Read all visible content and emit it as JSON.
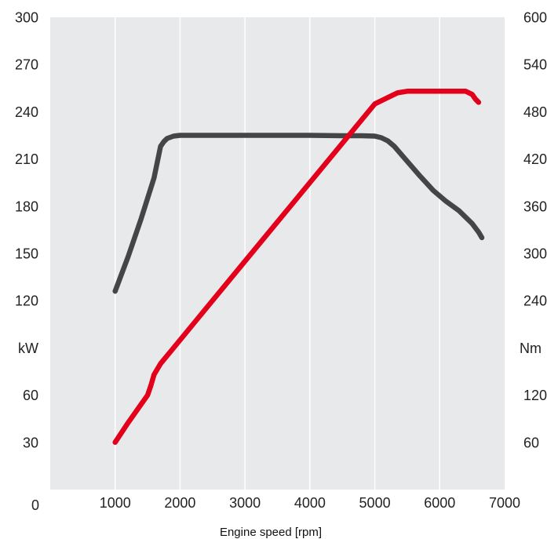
{
  "chart_data": {
    "type": "line",
    "xlabel": "Engine speed [rpm]",
    "xlim": [
      0,
      7000
    ],
    "x_ticks": [
      "1000",
      "2000",
      "3000",
      "4000",
      "5000",
      "6000",
      "7000"
    ],
    "x_tick_values": [
      1000,
      2000,
      3000,
      4000,
      5000,
      6000,
      7000
    ],
    "x_origin_label": "0",
    "left_axis": {
      "unit_label": "kW",
      "ylim": [
        0,
        300
      ],
      "ticks": [
        "30",
        "60",
        "120",
        "150",
        "180",
        "210",
        "240",
        "270",
        "300"
      ],
      "tick_values": [
        30,
        60,
        120,
        150,
        180,
        210,
        240,
        270,
        300
      ],
      "unit_label_value": 90
    },
    "right_axis": {
      "unit_label": "Nm",
      "ylim": [
        0,
        600
      ],
      "ticks": [
        "60",
        "120",
        "240",
        "300",
        "360",
        "420",
        "480",
        "540",
        "600"
      ],
      "tick_values": [
        60,
        120,
        240,
        300,
        360,
        420,
        480,
        540,
        600
      ],
      "unit_label_value": 180
    },
    "grid": "vertical",
    "series": [
      {
        "axis": "right",
        "color": "#444547",
        "x": [
          1000,
          1200,
          1400,
          1600,
          1700,
          1750,
          1800,
          1900,
          2000,
          3000,
          4000,
          4500,
          4800,
          5000,
          5100,
          5200,
          5300,
          5500,
          5700,
          5900,
          6100,
          6300,
          6500,
          6600,
          6650
        ],
        "y": [
          252,
          296,
          344,
          396,
          436,
          442,
          446,
          449,
          450,
          450,
          450,
          449.5,
          449.5,
          449,
          447,
          443,
          436,
          417,
          398,
          380,
          366,
          354,
          338,
          327,
          320
        ]
      },
      {
        "axis": "right",
        "color": "#e3001b",
        "x": [
          1000,
          1200,
          1500,
          1550,
          1600,
          1700,
          2000,
          3000,
          4000,
          5000,
          5250,
          5350,
          5500,
          6000,
          6400,
          6500,
          6550,
          6600
        ],
        "y": [
          60,
          85,
          120,
          132,
          146,
          160,
          190,
          290,
          390,
          490,
          500,
          504,
          506,
          506,
          506,
          502,
          496,
          492
        ]
      }
    ]
  }
}
